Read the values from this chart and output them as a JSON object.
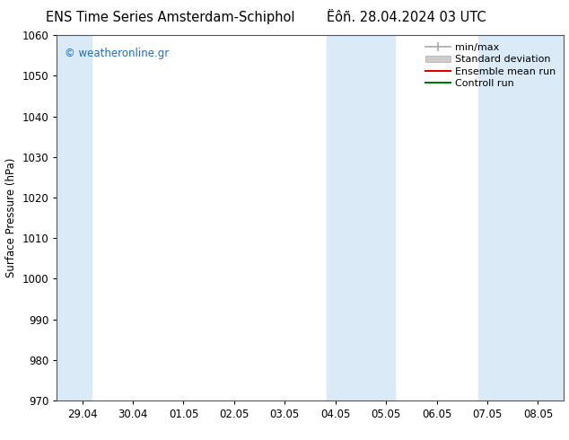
{
  "title_left": "ENS Time Series Amsterdam-Schiphol",
  "title_right": "Ëôñ. 28.04.2024 03 UTC",
  "ylabel": "Surface Pressure (hPa)",
  "ylim": [
    970,
    1060
  ],
  "yticks": [
    970,
    980,
    990,
    1000,
    1010,
    1020,
    1030,
    1040,
    1050,
    1060
  ],
  "xtick_labels": [
    "29.04",
    "30.04",
    "01.05",
    "02.05",
    "03.05",
    "04.05",
    "05.05",
    "06.05",
    "07.05",
    "08.05"
  ],
  "watermark": "© weatheronline.gr",
  "watermark_color": "#1a6ec9",
  "background_color": "#ffffff",
  "plot_bg_color": "#ffffff",
  "shade_color": "#daeaf7",
  "title_fontsize": 10.5,
  "axis_fontsize": 8.5,
  "tick_fontsize": 8.5,
  "legend_fontsize": 8,
  "shade_ranges": [
    [
      -0.5,
      0.18
    ],
    [
      4.82,
      6.18
    ],
    [
      7.82,
      9.5
    ]
  ]
}
